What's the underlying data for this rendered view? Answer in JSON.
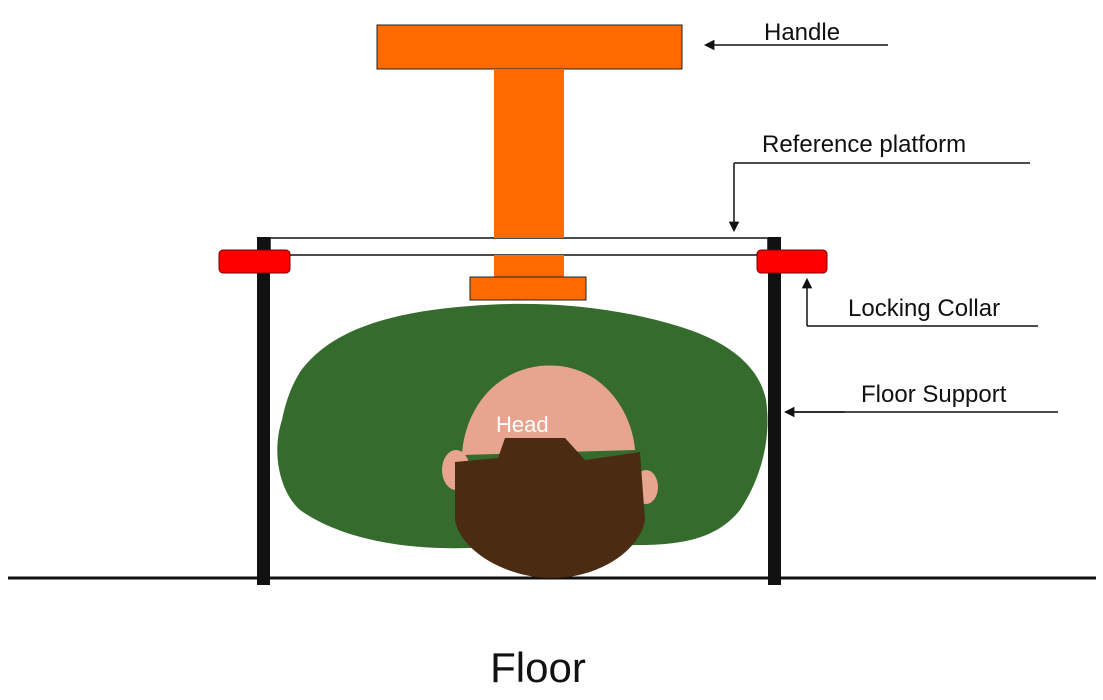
{
  "labels": {
    "handle": "Handle",
    "reference_platform": "Reference platform",
    "locking_collar": "Locking Collar",
    "floor_support": "Floor Support",
    "head": "Head",
    "floor": "Floor"
  },
  "colors": {
    "handle": "#ff6a00",
    "collar": "#ff0000",
    "foliage": "#366b2e",
    "skin": "#e7a590",
    "hair": "#4b2c12",
    "support": "#111111",
    "platform_fill": "#ffffff",
    "line": "#111111"
  }
}
